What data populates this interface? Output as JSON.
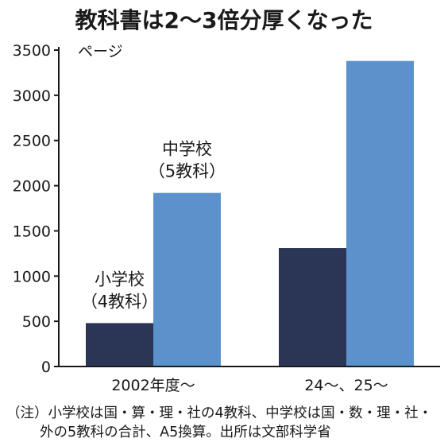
{
  "title": "教科書は2～3倍分厚くなった",
  "note": {
    "line1": "（注）小学校は国・算・理・社の4教科、中学校は国・数・理・社・",
    "line2": "外の5教科の合計、A5換算。出所は文部科学省"
  },
  "colors": {
    "elementary": "#2b3556",
    "junior": "#5b92cc",
    "axis": "#1a1a1a"
  },
  "chart_data": {
    "type": "bar",
    "title": "教科書は2～3倍分厚くなった",
    "ylabel": "ページ",
    "xlabel": "",
    "ylim": [
      0,
      3500
    ],
    "yticks": [
      0,
      500,
      1000,
      1500,
      2000,
      2500,
      3000,
      3500
    ],
    "grid": false,
    "categories": [
      "2002年度～",
      "24～、25～"
    ],
    "series": [
      {
        "name": "小学校（4教科）",
        "label_line1": "小学校",
        "label_line2": "（4教科）",
        "color": "#2b3556",
        "values": [
          480,
          1310
        ]
      },
      {
        "name": "中学校（5教科）",
        "label_line1": "中学校",
        "label_line2": "（5教科）",
        "color": "#5b92cc",
        "values": [
          1920,
          3380
        ]
      }
    ]
  }
}
